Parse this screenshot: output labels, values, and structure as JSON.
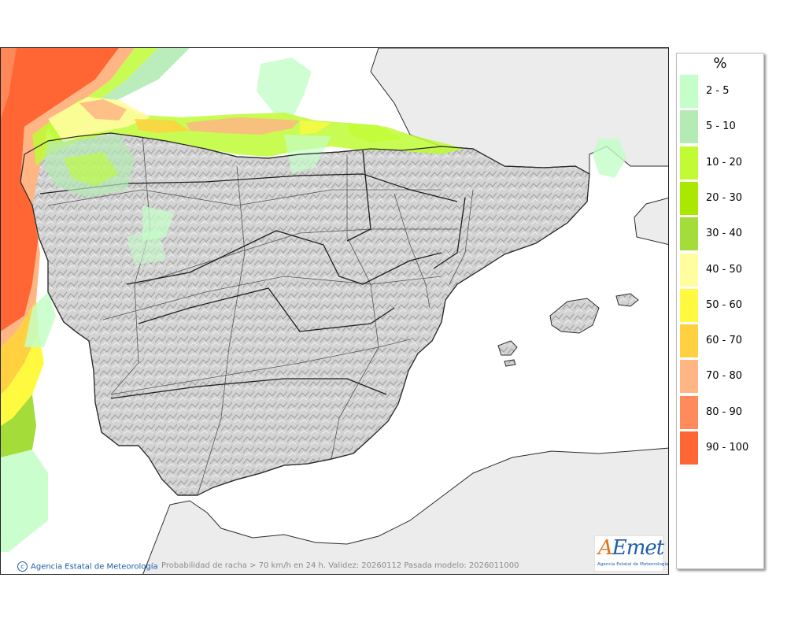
{
  "legend": {
    "title": "%",
    "items": [
      {
        "label": "2 - 5",
        "color": "#c4fec8"
      },
      {
        "label": "5 - 10",
        "color": "#b4eab4"
      },
      {
        "label": "10 - 20",
        "color": "#c0fb34"
      },
      {
        "label": "20 - 30",
        "color": "#abe800"
      },
      {
        "label": "30 - 40",
        "color": "#a4dc3a"
      },
      {
        "label": "40 - 50",
        "color": "#fffd9e"
      },
      {
        "label": "50 - 60",
        "color": "#fffa40"
      },
      {
        "label": "60 - 70",
        "color": "#ffd040"
      },
      {
        "label": "70 - 80",
        "color": "#ffb584"
      },
      {
        "label": "80 - 90",
        "color": "#ff8b5c"
      },
      {
        "label": "90 - 100",
        "color": "#ff6634"
      }
    ]
  },
  "credit": "Agencia Estatal de Meteorología",
  "caption": "Probabilidad de racha > 70 km/h en 24 h. Validez: 20260112 Pasada modelo: 2026011000",
  "logo": {
    "main_a": "A",
    "main_rest": "Emet",
    "sub": "Agencia Estatal de Meteorología"
  },
  "colors": {
    "sea": "#ffffff",
    "foreign_land": "#ececec",
    "spain_land": "#cfcfcf",
    "border": "#2b2b2b"
  },
  "map_features": [
    {
      "name": "iberian-peninsula"
    },
    {
      "name": "france"
    },
    {
      "name": "north-africa"
    },
    {
      "name": "mallorca"
    },
    {
      "name": "menorca"
    },
    {
      "name": "ibiza"
    },
    {
      "name": "formentera"
    },
    {
      "name": "corsica-sardinia"
    }
  ]
}
